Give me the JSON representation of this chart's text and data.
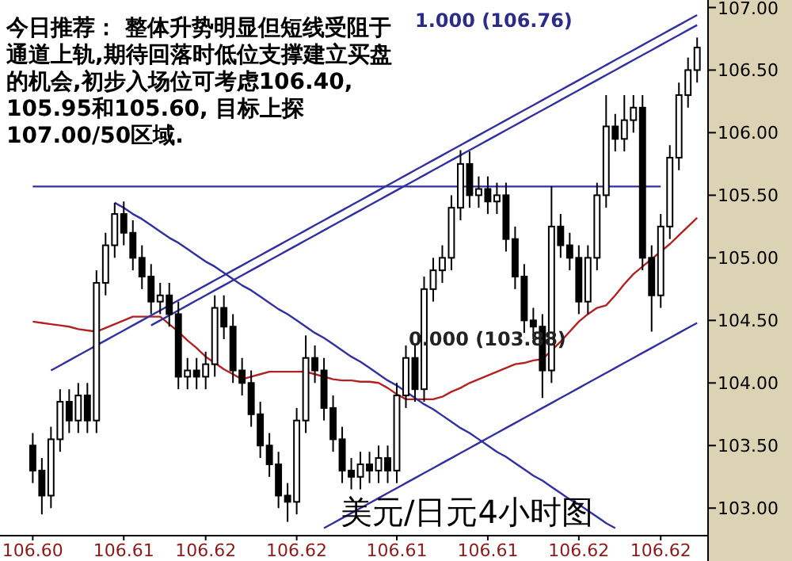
{
  "chart_data": {
    "type": "candlestick",
    "title": "美元/日元4小时图",
    "annotations": [
      "今日推荐： 整体升势明显但短线受阻于通道上轨,期待回落时低位支撑建立买盘的机会,初步入场位可考虑106.40, 105.95和105.60, 目标上探107.00/50区域.",
      "1.000 (106.76)",
      "0.000 (103.88)"
    ],
    "categories": [
      "106.60",
      null,
      null,
      null,
      null,
      null,
      null,
      null,
      null,
      null,
      "106.61",
      null,
      null,
      null,
      null,
      null,
      null,
      null,
      null,
      "106.62",
      null,
      null,
      null,
      null,
      null,
      null,
      null,
      null,
      null,
      "106.62",
      null,
      null,
      null,
      null,
      null,
      null,
      null,
      null,
      null,
      null,
      "106.61",
      null,
      null,
      null,
      null,
      null,
      null,
      null,
      null,
      null,
      "106.61",
      null,
      null,
      null,
      null,
      null,
      null,
      null,
      null,
      null,
      "106.62",
      null,
      null,
      null,
      null,
      null,
      null,
      null,
      null,
      "106.62",
      null,
      null,
      null,
      null
    ],
    "ohlc": [
      [
        103.5,
        103.6,
        103.2,
        103.3
      ],
      [
        103.3,
        103.4,
        102.95,
        103.1
      ],
      [
        103.1,
        103.65,
        103.0,
        103.55
      ],
      [
        103.55,
        103.95,
        103.45,
        103.85
      ],
      [
        103.85,
        103.95,
        103.6,
        103.7
      ],
      [
        103.7,
        104.0,
        103.6,
        103.9
      ],
      [
        103.9,
        104.0,
        103.6,
        103.7
      ],
      [
        103.7,
        104.9,
        103.6,
        104.8
      ],
      [
        104.8,
        105.2,
        104.7,
        105.1
      ],
      [
        105.1,
        105.44,
        105.0,
        105.35
      ],
      [
        105.35,
        105.45,
        105.1,
        105.2
      ],
      [
        105.2,
        105.3,
        104.9,
        105.0
      ],
      [
        105.0,
        105.1,
        104.75,
        104.85
      ],
      [
        104.85,
        104.95,
        104.55,
        104.65
      ],
      [
        104.65,
        104.8,
        104.55,
        104.7
      ],
      [
        104.7,
        104.8,
        104.45,
        104.55
      ],
      [
        104.55,
        104.65,
        103.95,
        104.05
      ],
      [
        104.05,
        104.2,
        103.95,
        104.1
      ],
      [
        104.1,
        104.2,
        103.95,
        104.05
      ],
      [
        104.05,
        104.25,
        103.95,
        104.15
      ],
      [
        104.15,
        104.7,
        104.05,
        104.6
      ],
      [
        104.6,
        104.7,
        104.35,
        104.45
      ],
      [
        104.45,
        104.55,
        104.0,
        104.1
      ],
      [
        104.1,
        104.2,
        103.9,
        104.0
      ],
      [
        104.0,
        104.1,
        103.65,
        103.75
      ],
      [
        103.75,
        103.85,
        103.4,
        103.5
      ],
      [
        103.5,
        103.6,
        103.25,
        103.35
      ],
      [
        103.35,
        103.45,
        103.0,
        103.1
      ],
      [
        103.1,
        103.2,
        102.89,
        103.05
      ],
      [
        103.05,
        103.8,
        102.95,
        103.7
      ],
      [
        103.7,
        104.38,
        103.6,
        104.2
      ],
      [
        104.2,
        104.3,
        104.0,
        104.1
      ],
      [
        104.1,
        104.2,
        103.7,
        103.8
      ],
      [
        103.8,
        103.9,
        103.45,
        103.55
      ],
      [
        103.55,
        103.65,
        103.2,
        103.3
      ],
      [
        103.3,
        103.4,
        103.15,
        103.25
      ],
      [
        103.25,
        103.45,
        103.15,
        103.35
      ],
      [
        103.35,
        103.45,
        103.2,
        103.3
      ],
      [
        103.3,
        103.5,
        103.2,
        103.4
      ],
      [
        103.4,
        103.5,
        103.2,
        103.3
      ],
      [
        103.3,
        104.0,
        103.2,
        103.9
      ],
      [
        103.9,
        104.3,
        103.8,
        104.2
      ],
      [
        104.2,
        104.3,
        103.85,
        103.95
      ],
      [
        103.95,
        104.85,
        103.85,
        104.75
      ],
      [
        104.75,
        105.0,
        104.65,
        104.9
      ],
      [
        104.9,
        105.1,
        104.8,
        105.0
      ],
      [
        105.0,
        105.5,
        104.9,
        105.4
      ],
      [
        105.4,
        105.86,
        105.3,
        105.75
      ],
      [
        105.75,
        105.85,
        105.4,
        105.5
      ],
      [
        105.5,
        105.65,
        105.4,
        105.55
      ],
      [
        105.55,
        105.65,
        105.35,
        105.45
      ],
      [
        105.45,
        105.6,
        105.35,
        105.5
      ],
      [
        105.5,
        105.6,
        105.05,
        105.15
      ],
      [
        105.15,
        105.25,
        104.75,
        104.85
      ],
      [
        104.85,
        104.95,
        104.4,
        104.5
      ],
      [
        104.5,
        104.6,
        104.35,
        104.45
      ],
      [
        104.45,
        104.55,
        103.88,
        104.1
      ],
      [
        104.1,
        105.57,
        104.0,
        105.25
      ],
      [
        105.25,
        105.35,
        105.0,
        105.1
      ],
      [
        105.1,
        105.2,
        104.9,
        105.0
      ],
      [
        105.0,
        105.1,
        104.55,
        104.65
      ],
      [
        104.65,
        105.1,
        104.55,
        105.0
      ],
      [
        105.0,
        105.6,
        104.9,
        105.5
      ],
      [
        105.5,
        106.3,
        105.4,
        106.05
      ],
      [
        106.05,
        106.15,
        105.85,
        105.95
      ],
      [
        105.95,
        106.3,
        105.85,
        106.1
      ],
      [
        106.1,
        106.3,
        106.0,
        106.2
      ],
      [
        106.2,
        106.3,
        104.9,
        105.0
      ],
      [
        105.0,
        105.1,
        104.41,
        104.7
      ],
      [
        104.7,
        105.35,
        104.6,
        105.25
      ],
      [
        105.25,
        105.9,
        105.15,
        105.8
      ],
      [
        105.8,
        106.4,
        105.7,
        106.3
      ],
      [
        106.3,
        106.6,
        106.2,
        106.5
      ],
      [
        106.5,
        106.76,
        106.4,
        106.68
      ]
    ],
    "series": [
      {
        "type": "line",
        "color": "#b22222",
        "values": [
          104.49,
          104.48,
          104.47,
          104.46,
          104.45,
          104.43,
          104.42,
          104.41,
          104.44,
          104.47,
          104.5,
          104.53,
          104.53,
          104.53,
          104.53,
          104.47,
          104.41,
          104.34,
          104.28,
          104.21,
          104.16,
          104.11,
          104.07,
          104.03,
          104.05,
          104.07,
          104.09,
          104.09,
          104.09,
          104.09,
          104.09,
          104.07,
          104.05,
          104.03,
          104.02,
          104.02,
          104.01,
          104.01,
          104.0,
          103.96,
          103.91,
          103.87,
          103.87,
          103.87,
          103.87,
          103.89,
          103.93,
          103.96,
          104.0,
          104.03,
          104.06,
          104.09,
          104.12,
          104.15,
          104.16,
          104.18,
          104.19,
          104.26,
          104.33,
          104.41,
          104.49,
          104.55,
          104.6,
          104.62,
          104.7,
          104.79,
          104.87,
          104.93,
          104.99,
          105.05,
          105.11,
          105.18,
          105.25,
          105.32
        ]
      },
      {
        "type": "line",
        "color": "#3030a0",
        "values": [
          105.57,
          105.57,
          105.57,
          105.57,
          105.57,
          105.57,
          105.57,
          105.57,
          105.57,
          105.57,
          105.57,
          105.57,
          105.57,
          105.57,
          105.57,
          105.57,
          105.57,
          105.57,
          105.57,
          105.57,
          105.57,
          105.57,
          105.57,
          105.57,
          105.57,
          105.57,
          105.57,
          105.57,
          105.57,
          105.57,
          105.57,
          105.57,
          105.57,
          105.57,
          105.57,
          105.57,
          105.57,
          105.57,
          105.57,
          105.57,
          105.57,
          105.57,
          105.57,
          105.57,
          105.57,
          105.57,
          105.57,
          105.57,
          105.57,
          105.57,
          105.57,
          105.57,
          105.57,
          105.57,
          105.57,
          105.57,
          105.57,
          105.57,
          105.57,
          105.57,
          105.57,
          105.57,
          105.57,
          105.57,
          105.57,
          105.57,
          105.57,
          105.57,
          105.57,
          105.57,
          null,
          null,
          null,
          null
        ]
      },
      {
        "type": "line",
        "color": "#3030a0",
        "values": [
          null,
          null,
          104.1,
          104.14,
          104.18,
          104.22,
          104.26,
          104.3,
          104.34,
          104.38,
          104.42,
          104.46,
          104.5,
          104.54,
          104.58,
          104.62,
          104.66,
          104.7,
          104.74,
          104.78,
          104.82,
          104.86,
          104.9,
          104.94,
          104.98,
          105.02,
          105.06,
          105.1,
          105.14,
          105.18,
          105.22,
          105.26,
          105.3,
          105.34,
          105.38,
          105.42,
          105.46,
          105.5,
          105.54,
          105.58,
          105.62,
          105.66,
          105.7,
          105.74,
          105.78,
          105.82,
          105.86,
          105.9,
          105.94,
          105.98,
          106.02,
          106.06,
          106.1,
          106.14,
          106.18,
          106.22,
          106.26,
          106.3,
          106.34,
          106.38,
          106.42,
          106.46,
          106.5,
          106.54,
          106.58,
          106.62,
          106.66,
          106.7,
          106.74,
          106.78,
          106.82,
          106.86,
          106.9,
          106.94
        ]
      },
      {
        "type": "line",
        "color": "#3030a0",
        "values": [
          null,
          null,
          null,
          null,
          null,
          null,
          null,
          null,
          null,
          null,
          null,
          null,
          null,
          104.46,
          104.5,
          104.54,
          104.58,
          104.62,
          104.66,
          104.7,
          104.74,
          104.78,
          104.82,
          104.86,
          104.9,
          104.94,
          104.98,
          105.02,
          105.06,
          105.1,
          105.14,
          105.18,
          105.22,
          105.26,
          105.3,
          105.34,
          105.38,
          105.42,
          105.46,
          105.5,
          105.54,
          105.58,
          105.62,
          105.66,
          105.7,
          105.74,
          105.78,
          105.82,
          105.86,
          105.9,
          105.94,
          105.98,
          106.02,
          106.06,
          106.1,
          106.14,
          106.18,
          106.22,
          106.26,
          106.3,
          106.34,
          106.38,
          106.42,
          106.46,
          106.5,
          106.54,
          106.58,
          106.62,
          106.66,
          106.7,
          106.74,
          106.78,
          106.82,
          106.86
        ]
      },
      {
        "type": "line",
        "color": "#3030a0",
        "values": [
          null,
          null,
          null,
          null,
          null,
          null,
          null,
          null,
          null,
          105.44,
          105.4,
          105.35,
          105.31,
          105.26,
          105.21,
          105.16,
          105.12,
          105.07,
          105.02,
          104.97,
          104.93,
          104.88,
          104.83,
          104.78,
          104.74,
          104.69,
          104.64,
          104.59,
          104.55,
          104.5,
          104.45,
          104.4,
          104.36,
          104.31,
          104.26,
          104.21,
          104.17,
          104.12,
          104.07,
          104.02,
          103.98,
          103.93,
          103.88,
          103.83,
          103.79,
          103.74,
          103.69,
          103.64,
          103.6,
          103.55,
          103.5,
          103.45,
          103.41,
          103.36,
          103.31,
          103.26,
          103.22,
          103.17,
          103.12,
          103.07,
          103.03,
          102.98,
          102.93,
          102.88,
          102.84,
          null,
          null,
          null,
          null,
          null,
          null,
          null,
          null,
          null
        ]
      },
      {
        "type": "line",
        "color": "#3030a0",
        "values": [
          null,
          null,
          null,
          null,
          null,
          null,
          null,
          null,
          null,
          null,
          null,
          null,
          null,
          null,
          null,
          null,
          null,
          null,
          null,
          null,
          null,
          null,
          null,
          null,
          null,
          null,
          null,
          null,
          null,
          null,
          null,
          null,
          102.84,
          102.88,
          102.92,
          102.96,
          103.0,
          103.04,
          103.08,
          103.12,
          103.16,
          103.2,
          103.24,
          103.28,
          103.32,
          103.36,
          103.4,
          103.44,
          103.48,
          103.52,
          103.56,
          103.6,
          103.64,
          103.68,
          103.72,
          103.76,
          103.8,
          103.84,
          103.88,
          103.92,
          103.96,
          104.0,
          104.04,
          104.08,
          104.12,
          104.16,
          104.2,
          104.24,
          104.28,
          104.32,
          104.36,
          104.4,
          104.44,
          104.48
        ]
      }
    ],
    "ylim": [
      102.78,
      107.06
    ],
    "yticks": [
      {
        "value": 103,
        "label": "103.00"
      },
      {
        "value": 103.5,
        "label": "103.50"
      },
      {
        "value": 104,
        "label": "104.00"
      },
      {
        "value": 104.5,
        "label": "104.50"
      },
      {
        "value": 105,
        "label": "105.00"
      },
      {
        "value": 105.5,
        "label": "105.50"
      },
      {
        "value": 106,
        "label": "106.00"
      },
      {
        "value": 106.5,
        "label": "106.50"
      },
      {
        "value": 107,
        "label": "107.00"
      }
    ],
    "tick_labels": true
  }
}
